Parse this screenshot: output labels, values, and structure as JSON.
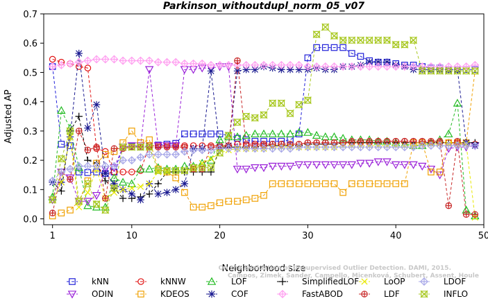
{
  "chart_data": {
    "type": "line",
    "title": "Parkinson_withoutdupl_norm_05_v07",
    "xlabel": "Neighborhood size",
    "ylabel": "Adjusted AP",
    "xlim": [
      0,
      50
    ],
    "ylim": [
      -0.02,
      0.7
    ],
    "xticks": [
      1,
      10,
      20,
      30,
      40,
      50
    ],
    "yticks": [
      0.0,
      0.1,
      0.2,
      0.3,
      0.4,
      0.5,
      0.6,
      0.7
    ],
    "grid": false,
    "legend_position": "bottom",
    "x": [
      1,
      2,
      3,
      4,
      5,
      6,
      7,
      8,
      9,
      10,
      11,
      12,
      13,
      14,
      15,
      16,
      17,
      18,
      19,
      20,
      21,
      22,
      23,
      24,
      25,
      26,
      27,
      28,
      29,
      30,
      31,
      32,
      33,
      34,
      35,
      36,
      37,
      38,
      39,
      40,
      41,
      42,
      43,
      44,
      45,
      46,
      47,
      48,
      49
    ],
    "series": [
      {
        "name": "kNN",
        "color": "#1f1fd8",
        "dash": "4,3",
        "marker": "square",
        "values": [
          0.52,
          0.255,
          0.25,
          0.16,
          0.158,
          0.16,
          0.155,
          0.16,
          0.245,
          0.248,
          0.245,
          0.25,
          0.252,
          0.255,
          0.258,
          0.29,
          0.29,
          0.29,
          0.29,
          0.29,
          0.285,
          0.275,
          0.27,
          0.265,
          0.265,
          0.265,
          0.265,
          0.27,
          0.29,
          0.55,
          0.585,
          0.585,
          0.585,
          0.585,
          0.565,
          0.555,
          0.54,
          0.535,
          0.535,
          0.53,
          0.525,
          0.525,
          0.52,
          0.515,
          0.515,
          0.51,
          0.51,
          0.51,
          0.51
        ]
      },
      {
        "name": "kNNW",
        "color": "#e01010",
        "dash": "4,3",
        "marker": "circle",
        "values": [
          0.545,
          0.535,
          0.53,
          0.52,
          0.515,
          0.24,
          0.23,
          0.16,
          0.16,
          0.16,
          0.165,
          0.25,
          0.25,
          0.25,
          0.25,
          0.25,
          0.25,
          0.25,
          0.25,
          0.25,
          0.25,
          0.255,
          0.255,
          0.255,
          0.255,
          0.255,
          0.255,
          0.255,
          0.255,
          0.26,
          0.26,
          0.26,
          0.26,
          0.26,
          0.26,
          0.26,
          0.26,
          0.265,
          0.265,
          0.265,
          0.265,
          0.265,
          0.265,
          0.26,
          0.26,
          0.26,
          0.26,
          0.26,
          0.255
        ]
      },
      {
        "name": "LOF",
        "color": "#22bb22",
        "dash": "4,3",
        "marker": "triangle-up",
        "values": [
          0.075,
          0.37,
          0.31,
          0.175,
          0.045,
          0.04,
          0.04,
          0.14,
          0.125,
          0.12,
          0.17,
          0.17,
          0.175,
          0.17,
          0.17,
          0.18,
          0.18,
          0.19,
          0.2,
          0.27,
          0.28,
          0.28,
          0.285,
          0.29,
          0.29,
          0.29,
          0.29,
          0.29,
          0.295,
          0.295,
          0.285,
          0.28,
          0.28,
          0.275,
          0.27,
          0.27,
          0.27,
          0.265,
          0.265,
          0.26,
          0.255,
          0.25,
          0.25,
          0.26,
          0.27,
          0.29,
          0.395,
          0.03,
          0.01
        ]
      },
      {
        "name": "ODIN",
        "color": "#9a20d8",
        "dash": "4,3",
        "marker": "triangle-down",
        "values": [
          0.065,
          0.16,
          0.14,
          0.06,
          0.06,
          0.08,
          0.17,
          0.175,
          0.245,
          0.25,
          0.25,
          0.51,
          0.25,
          0.25,
          0.25,
          0.51,
          0.51,
          0.515,
          0.515,
          0.52,
          0.52,
          0.17,
          0.17,
          0.175,
          0.175,
          0.18,
          0.18,
          0.18,
          0.185,
          0.185,
          0.185,
          0.185,
          0.185,
          0.185,
          0.185,
          0.19,
          0.19,
          0.195,
          0.195,
          0.185,
          0.185,
          0.185,
          0.18,
          0.17,
          0.15,
          0.24,
          0.245,
          0.245,
          0.25
        ]
      },
      {
        "name": "SimplifiedLOF",
        "color": "#000000",
        "dash": "4,3",
        "marker": "plus",
        "values": [
          0.125,
          0.095,
          0.3,
          0.35,
          0.2,
          0.19,
          0.13,
          0.105,
          0.07,
          0.07,
          0.075,
          0.085,
          0.12,
          0.16,
          0.16,
          0.16,
          0.16,
          0.16,
          0.16,
          0.24,
          0.245,
          0.245,
          0.245,
          0.245,
          0.25,
          0.25,
          0.25,
          0.25,
          0.25,
          0.255,
          0.255,
          0.255,
          0.255,
          0.26,
          0.26,
          0.26,
          0.26,
          0.26,
          0.26,
          0.26,
          0.26,
          0.26,
          0.26,
          0.26,
          0.26,
          0.26,
          0.26,
          0.26,
          0.26
        ]
      },
      {
        "name": "KDEOS",
        "color": "#f0a000",
        "dash": "4,3",
        "marker": "square",
        "values": [
          0.01,
          0.02,
          0.03,
          0.06,
          0.13,
          0.19,
          0.22,
          0.23,
          0.26,
          0.3,
          0.26,
          0.27,
          0.17,
          0.16,
          0.14,
          0.09,
          0.04,
          0.04,
          0.045,
          0.055,
          0.06,
          0.06,
          0.065,
          0.07,
          0.08,
          0.12,
          0.12,
          0.12,
          0.12,
          0.12,
          0.12,
          0.12,
          0.12,
          0.09,
          0.12,
          0.12,
          0.12,
          0.12,
          0.12,
          0.12,
          0.12,
          0.26,
          0.26,
          0.16,
          0.16,
          0.26,
          0.26,
          0.26,
          0.505
        ]
      },
      {
        "name": "COF",
        "color": "#1a1a90",
        "dash": "4,3",
        "marker": "star",
        "values": [
          0.125,
          0.125,
          0.28,
          0.565,
          0.31,
          0.39,
          0.155,
          0.12,
          0.1,
          0.085,
          0.065,
          0.12,
          0.085,
          0.09,
          0.1,
          0.12,
          0.24,
          0.24,
          0.505,
          0.245,
          0.25,
          0.505,
          0.51,
          0.51,
          0.52,
          0.515,
          0.51,
          0.51,
          0.51,
          0.51,
          0.515,
          0.51,
          0.51,
          0.52,
          0.52,
          0.525,
          0.535,
          0.535,
          0.535,
          0.525,
          0.52,
          0.51,
          0.51,
          0.51,
          0.51,
          0.51,
          0.51,
          0.26,
          0.25
        ]
      },
      {
        "name": "FastABOD",
        "color": "#ff9ff0",
        "dash": "4,3",
        "marker": "diamond",
        "values": [
          0.52,
          0.525,
          0.53,
          0.535,
          0.54,
          0.545,
          0.545,
          0.545,
          0.54,
          0.54,
          0.54,
          0.54,
          0.535,
          0.535,
          0.535,
          0.53,
          0.53,
          0.53,
          0.525,
          0.525,
          0.525,
          0.525,
          0.525,
          0.525,
          0.525,
          0.525,
          0.525,
          0.525,
          0.525,
          0.52,
          0.52,
          0.52,
          0.52,
          0.52,
          0.52,
          0.52,
          0.52,
          0.52,
          0.52,
          0.52,
          0.52,
          0.52,
          0.52,
          0.52,
          0.52,
          0.52,
          0.52,
          0.52,
          0.525
        ]
      },
      {
        "name": "LoOP",
        "color": "#e8e800",
        "dash": "4,3",
        "marker": "x",
        "values": [
          0.065,
          0.125,
          0.28,
          0.04,
          0.09,
          0.17,
          0.07,
          0.09,
          0.1,
          0.105,
          0.11,
          0.12,
          0.16,
          0.16,
          0.165,
          0.165,
          0.17,
          0.19,
          0.205,
          0.225,
          0.235,
          0.24,
          0.24,
          0.24,
          0.24,
          0.245,
          0.245,
          0.245,
          0.245,
          0.245,
          0.245,
          0.245,
          0.245,
          0.25,
          0.25,
          0.25,
          0.25,
          0.25,
          0.25,
          0.25,
          0.25,
          0.25,
          0.255,
          0.255,
          0.255,
          0.255,
          0.255,
          0.255,
          0.005
        ]
      },
      {
        "name": "LDF",
        "color": "#c82828",
        "dash": "4,3",
        "marker": "circle-plus",
        "values": [
          0.02,
          0.16,
          0.135,
          0.3,
          0.235,
          0.245,
          0.07,
          0.24,
          0.24,
          0.245,
          0.245,
          0.245,
          0.245,
          0.245,
          0.245,
          0.245,
          0.17,
          0.17,
          0.245,
          0.245,
          0.25,
          0.54,
          0.25,
          0.25,
          0.25,
          0.255,
          0.255,
          0.255,
          0.255,
          0.26,
          0.26,
          0.26,
          0.26,
          0.26,
          0.265,
          0.265,
          0.265,
          0.265,
          0.265,
          0.265,
          0.265,
          0.265,
          0.265,
          0.265,
          0.265,
          0.045,
          0.265,
          0.015,
          0.015
        ]
      },
      {
        "name": "LDOF",
        "color": "#a8a8e8",
        "dash": "4,3",
        "marker": "diamond",
        "values": [
          0.13,
          0.16,
          0.17,
          0.18,
          0.18,
          0.18,
          0.18,
          0.18,
          0.2,
          0.2,
          0.21,
          0.22,
          0.22,
          0.22,
          0.22,
          0.23,
          0.235,
          0.235,
          0.235,
          0.24,
          0.24,
          0.24,
          0.24,
          0.24,
          0.24,
          0.24,
          0.24,
          0.24,
          0.245,
          0.245,
          0.245,
          0.245,
          0.245,
          0.245,
          0.245,
          0.245,
          0.245,
          0.245,
          0.245,
          0.245,
          0.245,
          0.245,
          0.25,
          0.25,
          0.25,
          0.25,
          0.25,
          0.25,
          0.25
        ]
      },
      {
        "name": "INFLO",
        "color": "#a8c820",
        "dash": "4,3",
        "marker": "hourglass",
        "values": [
          0.065,
          0.205,
          0.3,
          0.06,
          0.12,
          0.05,
          0.03,
          0.105,
          0.245,
          0.245,
          0.245,
          0.245,
          0.165,
          0.165,
          0.165,
          0.165,
          0.175,
          0.175,
          0.175,
          0.225,
          0.285,
          0.33,
          0.35,
          0.345,
          0.355,
          0.395,
          0.395,
          0.36,
          0.39,
          0.405,
          0.63,
          0.655,
          0.625,
          0.61,
          0.61,
          0.61,
          0.61,
          0.61,
          0.61,
          0.595,
          0.595,
          0.61,
          0.505,
          0.505,
          0.505,
          0.505,
          0.505,
          0.505,
          0.505
        ]
      }
    ],
    "legend": [
      [
        "kNN",
        "kNNW",
        "LOF",
        "SimplifiedLOF",
        "LoOP",
        "LDOF"
      ],
      [
        "ODIN",
        "KDEOS",
        "COF",
        "FastABOD",
        "LDF",
        "INFLO"
      ]
    ]
  },
  "watermark": [
    "Campos, Zimek, Sander, Campello, Micenková, Schubert, Assent, Houle",
    "On the Evaluation of Unsupervised Outlier Detection. DAMI, 2015."
  ]
}
